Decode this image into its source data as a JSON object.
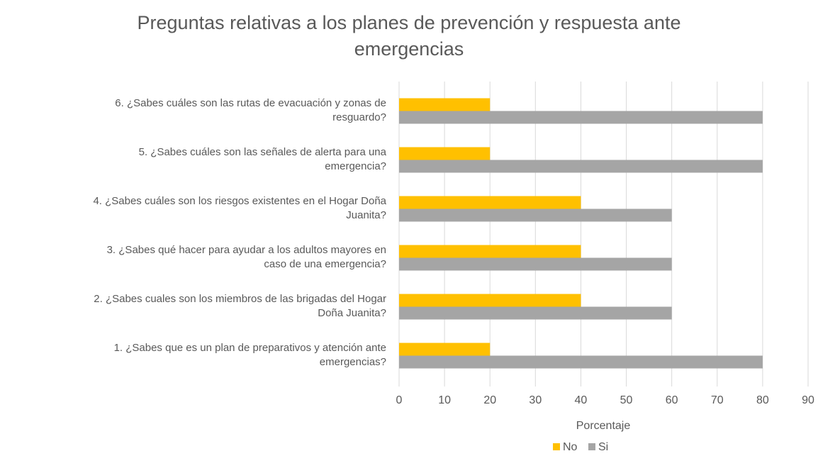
{
  "chart_data": {
    "type": "hbar",
    "title": "Preguntas relativas a los planes de prevención y respuesta ante emergencias",
    "x_label": "Porcentaje",
    "categories": [
      "1. ¿Sabes que es un plan de preparativos y atención ante emergencias?",
      "2. ¿Sabes cuales son los miembros de las brigadas del Hogar Doña Juanita?",
      "3. ¿Sabes qué hacer para ayudar a los adultos mayores en caso de una emergencia?",
      "4. ¿Sabes cuáles son los riesgos existentes en el Hogar Doña Juanita?",
      "5. ¿Sabes cuáles son las señales de alerta para una emergencia?",
      "6. ¿Sabes cuáles son las rutas de evacuación y zonas de resguardo?"
    ],
    "series": [
      {
        "name": "No",
        "color": "#ffc000",
        "values": [
          20,
          40,
          40,
          40,
          20,
          20
        ]
      },
      {
        "name": "Si",
        "color": "#a5a5a5",
        "values": [
          80,
          60,
          60,
          60,
          80,
          80
        ]
      }
    ],
    "xlim": [
      0,
      90
    ],
    "xticks": [
      0,
      10,
      20,
      30,
      40,
      50,
      60,
      70,
      80,
      90
    ],
    "grid": true,
    "legend": "bottom"
  }
}
